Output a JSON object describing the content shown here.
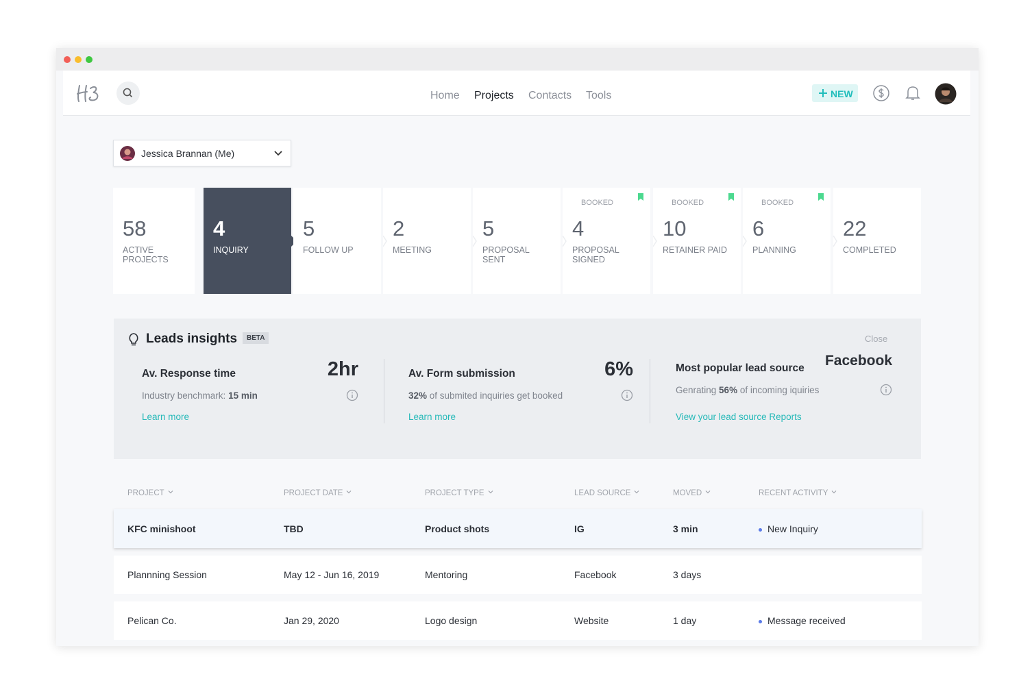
{
  "nav": {
    "links": [
      "Home",
      "Projects",
      "Contacts",
      "Tools"
    ],
    "active_link": 1,
    "new_button": "NEW"
  },
  "user_select": "Jessica Brannan (Me)",
  "pipeline": {
    "active_stage": 1,
    "stages": [
      {
        "count": 58,
        "label": "ACTIVE PROJECTS"
      },
      {
        "count": 4,
        "label": "INQUIRY"
      },
      {
        "count": 5,
        "label": "FOLLOW UP"
      },
      {
        "count": 2,
        "label": "MEETING"
      },
      {
        "count": 5,
        "label": "PROPOSAL SENT"
      },
      {
        "count": 4,
        "label": "PROPOSAL SIGNED",
        "tag": "BOOKED"
      },
      {
        "count": 10,
        "label": "RETAINER PAID",
        "tag": "BOOKED"
      },
      {
        "count": 6,
        "label": "PLANNING",
        "tag": "BOOKED"
      },
      {
        "count": 22,
        "label": "COMPLETED"
      }
    ]
  },
  "insights": {
    "title": "Leads insights",
    "badge": "BETA",
    "close": "Close",
    "metrics": [
      {
        "title": "Av. Response time",
        "value": "2hr",
        "note_before": "Industry benchmark: ",
        "note_bold": "15 min",
        "link": "Learn more"
      },
      {
        "title": "Av. Form submission",
        "value": "6%",
        "note_bold": "32%",
        "note_after": " of submited inquiries get booked",
        "link": "Learn more"
      },
      {
        "title": "Most popular lead source",
        "value": "Facebook",
        "note_before": "Genrating ",
        "note_bold": "56%",
        "note_after": " of incoming iquiries",
        "link": "View your lead source Reports"
      }
    ]
  },
  "table": {
    "columns": [
      "PROJECT",
      "PROJECT DATE",
      "PROJECT TYPE",
      "LEAD SOURCE",
      "MOVED",
      "RECENT ACTIVITY"
    ],
    "highlighted_row": 0,
    "rows": [
      [
        "KFC minishoot",
        "TBD",
        "Product shots",
        "IG",
        "3 min",
        "New Inquiry"
      ],
      [
        "Plannning Session",
        "May 12 - Jun 16, 2019",
        "Mentoring",
        "Facebook",
        "3 days"
      ],
      [
        "Pelican Co.",
        "Jan 29, 2020",
        "Logo design",
        "Website",
        "1 day",
        "Message received"
      ]
    ]
  }
}
